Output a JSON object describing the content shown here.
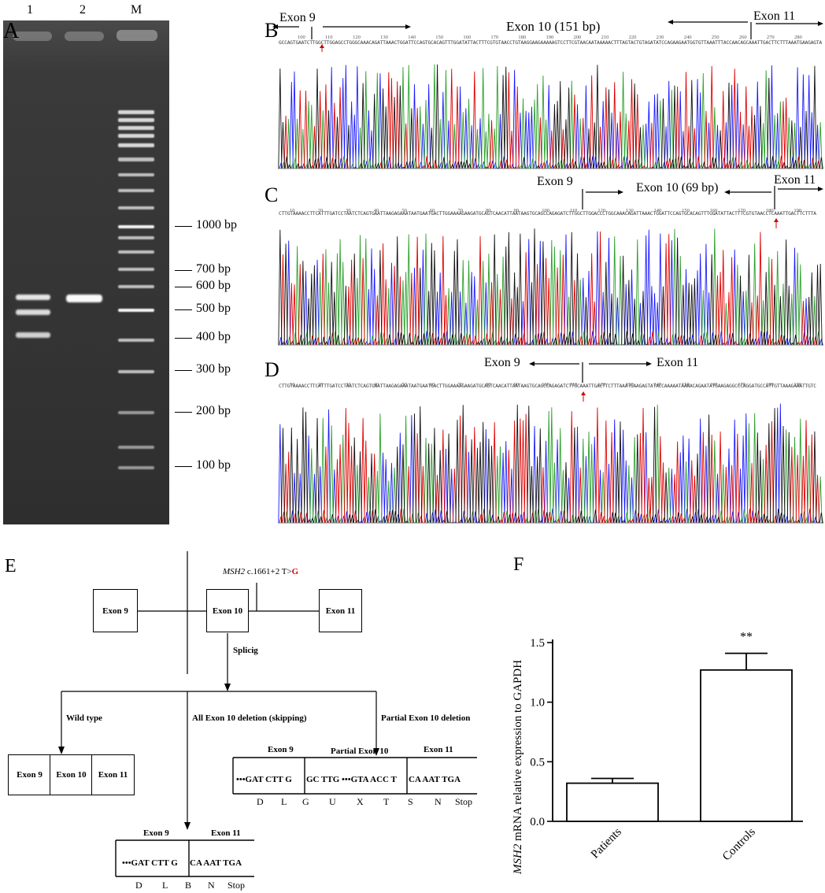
{
  "panelA": {
    "label": "A",
    "lanes": [
      "1",
      "2",
      "M"
    ],
    "markers": [
      "1000 bp",
      "700 bp",
      "600 bp",
      "500 bp",
      "400 bp",
      "300 bp",
      "200 bp",
      "100 bp"
    ]
  },
  "panelB": {
    "label": "B",
    "left_exon": "Exon 9",
    "mid_exon": "Exon 10 (151 bp)",
    "right_exon": "Exon 11",
    "ticks": [
      "100",
      "110",
      "120",
      "130",
      "140",
      "150",
      "160",
      "170",
      "180",
      "190",
      "200",
      "210",
      "220",
      "230",
      "240",
      "250",
      "260",
      "270",
      "280"
    ],
    "sequence": "GCCAGTGAATCTTGGCTTGGAGCCTGGGCAAACAGATTAAACTGGATTCCAGTGCACAGTTTGGATATTACTTTCGTGTAACCTGTAAGGAAGAAAAAGTCCTTCGTAACAATAAAAACTTTAGTACTGTAGATATCCAGAAGAATGGTGTTAAATTTACCAACAGCAAATTGACTTCTTTAAATGAAGAGTA"
  },
  "panelC": {
    "label": "C",
    "left_exon": "Exon 9",
    "mid_exon": "Exon 10 (69 bp)",
    "right_exon": "Exon 11",
    "ticks": [
      "10",
      "20",
      "30",
      "40",
      "50",
      "60",
      "70",
      "80",
      "90",
      "100",
      "110",
      "120",
      "130",
      "140",
      "150",
      "160",
      "170",
      "180",
      "190"
    ],
    "sequence": "CTTGTAAAACCTTCATTTGATCCTAATCTCAGTGAATTAAGAGAAATAATGAATGACTTGGAAAAGAAGATGCAGTCAACATTAATAAGTGCAGCCAGAGATCTTGGCTTGGACCCTGGCAAACAGATTAAACTGGATTCCAGTGCACAGTTTGGATATTACTTTCGTGTAACCTCAAATTGACTTCTTTA"
  },
  "panelD": {
    "label": "D",
    "left_exon": "Exon 9",
    "right_exon": "Exon 11",
    "ticks": [
      "10",
      "20",
      "30",
      "40",
      "50",
      "60",
      "70",
      "80",
      "90",
      "100",
      "110",
      "120",
      "130",
      "140",
      "150",
      "160",
      "170",
      "180",
      "190"
    ],
    "sequence": "CTTGTAAAACCTTCATTTGATCCTAATCTCAGTGAATTAAGAGAAATAATGAATGACTTGGAAAAGAAGATGCAGTCAACATTAATAAGTGCAGCCAGAGATCTTGCAAATTGACTTCTTTAAATGAAGAGTATACCAAAAATAAAACAGAATATGAAGAGGCCCAGGATGCCATTGTTAAAGAAATTGTC"
  },
  "panelE": {
    "label": "E",
    "mutation_gene": "MSH2",
    "mutation_text": " c.1661+2 T>",
    "mutation_alt": "G",
    "exon9": "Exon 9",
    "exon10": "Exon 10",
    "exon11": "Exon 11",
    "splicing": "Splicig",
    "wild_type": "Wild type",
    "all_deletion": "All Exon 10 deletion (skipping)",
    "partial_deletion": "Partial Exon 10 deletion",
    "partial_exon10": "Partial Exon 10",
    "partial_seq": [
      "•••GAT CTT G",
      "GC TTG •••GTA ACC T",
      "CA AAT TGA"
    ],
    "partial_aa": [
      "D",
      "L",
      "G",
      "U",
      "X",
      "T",
      "S",
      "N",
      "Stop"
    ],
    "skip_seq": [
      "•••GAT CTT G",
      "CA AAT TGA"
    ],
    "skip_aa": [
      "D",
      "L",
      "B",
      "N",
      "Stop"
    ]
  },
  "panelF": {
    "label": "F",
    "significance": "**",
    "chart_data": {
      "type": "bar",
      "categories": [
        "Patients",
        "Controls"
      ],
      "values": [
        0.32,
        1.27
      ],
      "errors": [
        0.04,
        0.14
      ],
      "ylabel_gene": "MSH2",
      "ylabel": " mRNA relative expression to GAPDH",
      "ylim": [
        0,
        1.5
      ],
      "yticks": [
        "0.0",
        "0.5",
        "1.0",
        "1.5"
      ]
    }
  }
}
